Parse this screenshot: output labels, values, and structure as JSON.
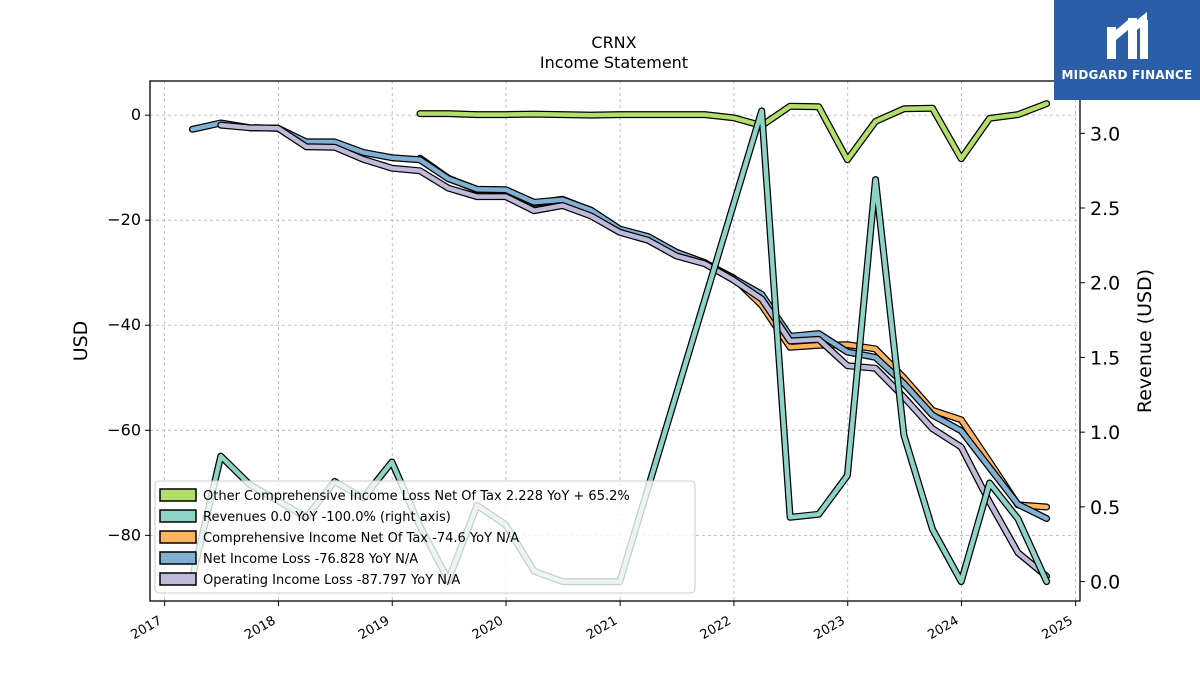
{
  "chart_data": {
    "type": "line",
    "title": "CRNX",
    "subtitle": "Income Statement",
    "ylabel": "USD",
    "ylabel_right": "Revenue (USD)",
    "x_ticks": [
      "2017",
      "2018",
      "2019",
      "2020",
      "2021",
      "2022",
      "2023",
      "2024",
      "2025"
    ],
    "y_ticks": [
      0,
      -20,
      -40,
      -60,
      -80
    ],
    "y_right_ticks": [
      "0.0",
      "0.5",
      "1.0",
      "1.5",
      "2.0",
      "2.5",
      "3.0"
    ],
    "ylim": [
      -92.5,
      6.5
    ],
    "ylim_right": [
      -0.13,
      3.35
    ],
    "xlim": [
      "2016-11-15",
      "2025-01-15"
    ],
    "grid": true,
    "legend_position": "lower-left",
    "series": [
      {
        "name": "Other Comprehensive Income Loss Net Of Tax  2.228 YoY + 65.2%",
        "color": "#b3de69",
        "axis": "left",
        "x": [
          "2019-03-31",
          "2019-06-30",
          "2019-09-30",
          "2019-12-31",
          "2020-03-31",
          "2020-06-30",
          "2020-09-30",
          "2020-12-31",
          "2021-03-31",
          "2021-06-30",
          "2021-09-30",
          "2021-12-31",
          "2022-03-31",
          "2022-06-30",
          "2022-09-30",
          "2022-12-31",
          "2023-03-31",
          "2023-06-30",
          "2023-09-30",
          "2023-12-31",
          "2024-03-31",
          "2024-06-30",
          "2024-09-30"
        ],
        "y": [
          0.3,
          0.3,
          0.1,
          0.1,
          0.2,
          0.1,
          0.0,
          0.1,
          0.1,
          0.1,
          0.1,
          -0.5,
          -2.0,
          1.7,
          1.6,
          -8.5,
          -1.2,
          1.2,
          1.3,
          -8.3,
          -0.6,
          0.1,
          2.2
        ]
      },
      {
        "name": "Revenues  0.0 YoY -100.0% (right axis)",
        "color": "#8dd3c7",
        "axis": "right",
        "x": [
          "2017-03-31",
          "2017-06-30",
          "2017-09-30",
          "2017-12-31",
          "2018-03-31",
          "2018-06-30",
          "2018-09-30",
          "2018-12-31",
          "2019-03-31",
          "2019-06-30",
          "2019-09-30",
          "2019-12-31",
          "2020-03-31",
          "2020-06-30",
          "2020-09-30",
          "2020-12-31",
          "2022-03-31",
          "2022-06-30",
          "2022-09-30",
          "2022-12-31",
          "2023-03-31",
          "2023-06-30",
          "2023-09-30",
          "2023-12-31",
          "2024-03-31",
          "2024-06-30",
          "2024-09-30"
        ],
        "y": [
          0.03,
          0.84,
          0.65,
          0.54,
          0.43,
          0.67,
          0.56,
          0.8,
          0.37,
          0.01,
          0.51,
          0.38,
          0.07,
          0.0,
          0.0,
          0.0,
          3.15,
          0.43,
          0.45,
          0.71,
          2.69,
          0.98,
          0.35,
          0.0,
          0.66,
          0.42,
          0.0
        ]
      },
      {
        "name": "Comprehensive Income Net Of Tax  -74.6 YoY N/A",
        "color": "#fdb462",
        "axis": "left",
        "x": [
          "2019-03-31",
          "2019-06-30",
          "2019-09-30",
          "2019-12-31",
          "2020-03-31",
          "2020-06-30",
          "2020-09-30",
          "2020-12-31",
          "2021-03-31",
          "2021-06-30",
          "2021-09-30",
          "2021-12-31",
          "2022-03-31",
          "2022-06-30",
          "2022-09-30",
          "2022-12-31",
          "2023-03-31",
          "2023-06-30",
          "2023-09-30",
          "2023-12-31",
          "2024-03-31",
          "2024-06-30",
          "2024-09-30"
        ],
        "y": [
          -8.2,
          -12.0,
          -14.2,
          -14.3,
          -16.8,
          -16.0,
          -18.2,
          -22.0,
          -23.3,
          -26.3,
          -28.2,
          -31.0,
          -36.2,
          -44.2,
          -43.8,
          -43.7,
          -44.5,
          -50.0,
          -56.2,
          -58.0,
          -66.0,
          -74.2,
          -74.6
        ]
      },
      {
        "name": "Net Income Loss  -76.828 YoY N/A",
        "color": "#80b1d3",
        "axis": "left",
        "x": [
          "2017-03-31",
          "2017-06-30",
          "2017-09-30",
          "2017-12-31",
          "2018-03-31",
          "2018-06-30",
          "2018-09-30",
          "2018-12-31",
          "2019-03-31",
          "2019-06-30",
          "2019-09-30",
          "2019-12-31",
          "2020-03-31",
          "2020-06-30",
          "2020-09-30",
          "2020-12-31",
          "2021-03-31",
          "2021-06-30",
          "2021-09-30",
          "2021-12-31",
          "2022-03-31",
          "2022-06-30",
          "2022-09-30",
          "2022-12-31",
          "2023-03-31",
          "2023-06-30",
          "2023-09-30",
          "2023-12-31",
          "2024-03-31",
          "2024-06-30",
          "2024-09-30"
        ],
        "y": [
          -2.7,
          -1.5,
          -2.4,
          -2.5,
          -5.1,
          -5.1,
          -7.1,
          -8.1,
          -8.5,
          -12.1,
          -14.1,
          -14.2,
          -16.6,
          -16.1,
          -18.1,
          -21.7,
          -23.1,
          -26.1,
          -28.1,
          -31.1,
          -34.1,
          -42.1,
          -41.6,
          -45.1,
          -46.1,
          -51.1,
          -57.1,
          -60.1,
          -67.1,
          -74.1,
          -76.8
        ]
      },
      {
        "name": "Operating Income Loss  -87.797 YoY N/A",
        "color": "#bebada",
        "axis": "left",
        "x": [
          "2017-06-30",
          "2017-09-30",
          "2017-12-31",
          "2018-03-31",
          "2018-06-30",
          "2018-09-30",
          "2018-12-31",
          "2019-03-31",
          "2019-06-30",
          "2019-09-30",
          "2019-12-31",
          "2020-03-31",
          "2020-06-30",
          "2020-09-30",
          "2020-12-31",
          "2021-03-31",
          "2021-06-30",
          "2021-09-30",
          "2021-12-31",
          "2022-03-31",
          "2022-06-30",
          "2022-09-30",
          "2022-12-31",
          "2023-03-31",
          "2023-06-30",
          "2023-09-30",
          "2023-12-31",
          "2024-03-31",
          "2024-06-30",
          "2024-09-30"
        ],
        "y": [
          -1.9,
          -2.4,
          -2.5,
          -6.0,
          -6.1,
          -8.4,
          -10.1,
          -10.6,
          -13.9,
          -15.5,
          -15.5,
          -18.2,
          -17.2,
          -19.2,
          -22.3,
          -23.8,
          -26.8,
          -28.3,
          -31.4,
          -35.0,
          -43.0,
          -42.7,
          -47.7,
          -48.2,
          -53.7,
          -59.7,
          -63.2,
          -73.7,
          -83.3,
          -87.8
        ]
      }
    ]
  },
  "logo": {
    "text": "MIDGARD FINANCE"
  }
}
